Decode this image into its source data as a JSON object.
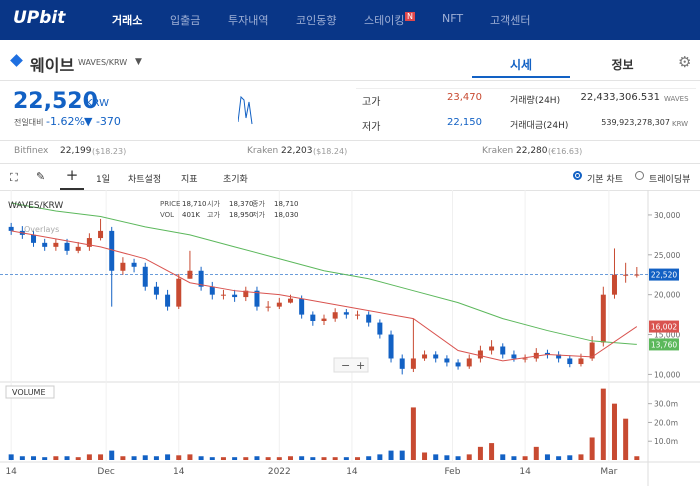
{
  "header": {
    "logo": "UPbit",
    "nav": [
      "거래소",
      "입출금",
      "투자내역",
      "코인동향",
      "스테이킹",
      "NFT",
      "고객센터"
    ],
    "badge": "N"
  },
  "coin": {
    "name": "웨이브",
    "pair": "WAVES/KRW",
    "tabs": [
      "시세",
      "정보"
    ]
  },
  "ticker": {
    "price": "22,520",
    "unit": "KRW",
    "change_label": "전일대비",
    "change_pct": "-1.62%",
    "change_abs": "▼ -370",
    "high_label": "고가",
    "high": "23,470",
    "low_label": "저가",
    "low": "22,150",
    "vol_label": "거래량(24H)",
    "vol": "22,433,306.531",
    "vol_unit": "WAVES",
    "amt_label": "거래대금(24H)",
    "amt": "539,923,278,307",
    "amt_unit": "KRW"
  },
  "exchanges": [
    {
      "name": "Bitfinex",
      "price": "22,199",
      "usd": "($18.23)"
    },
    {
      "name": "Kraken",
      "price": "22,203",
      "usd": "($18.24)"
    },
    {
      "name": "Kraken",
      "price": "22,280",
      "usd": "(€16.63)"
    }
  ],
  "toolbar": {
    "interval": "1일",
    "settings": "차트설정",
    "indicator": "지표",
    "reset": "초기화",
    "basic": "기본 차트",
    "tv": "트레이딩뷰"
  },
  "chart_data": {
    "type": "candlestick",
    "title": "WAVES/KRW",
    "overlay_label": "Overlays",
    "volume_label": "VOLUME",
    "info": [
      [
        "PRICE",
        "18,710"
      ],
      [
        "시가",
        "18,370"
      ],
      [
        "종가",
        "18,710"
      ],
      [
        "VOL",
        "401K"
      ],
      [
        "고가",
        "18,950"
      ],
      [
        "저가",
        "18,030"
      ]
    ],
    "up_color": "#c84a31",
    "down_color": "#1261c4",
    "x": [
      0,
      2,
      4,
      6,
      8,
      10,
      12,
      14,
      16,
      18,
      20,
      22,
      24,
      26,
      28,
      30,
      32,
      34,
      36,
      38,
      40,
      42,
      44,
      46,
      48,
      50,
      52,
      54,
      56,
      58,
      60,
      62,
      64,
      66,
      68,
      70,
      72,
      74,
      76,
      78,
      80,
      82,
      84,
      86,
      88,
      90,
      92,
      94,
      96,
      98,
      100,
      102,
      104,
      106,
      108,
      110,
      112
    ],
    "open": [
      28500,
      28000,
      27500,
      26500,
      26000,
      26500,
      25500,
      26000,
      27100,
      28000,
      23000,
      24000,
      23500,
      21000,
      20000,
      18500,
      22000,
      23000,
      21000,
      20000,
      20000,
      19700,
      20500,
      18500,
      18500,
      19000,
      19500,
      17500,
      16700,
      17000,
      17800,
      17500,
      17500,
      16500,
      15000,
      12000,
      10700,
      12000,
      12500,
      12000,
      11500,
      11000,
      12000,
      13000,
      13500,
      12500,
      12000,
      12000,
      12700,
      12500,
      12000,
      11300,
      12000,
      14000,
      20000,
      22500,
      22500
    ],
    "high": [
      29000,
      28600,
      28000,
      27000,
      27000,
      27000,
      26600,
      27700,
      29500,
      28500,
      24700,
      24500,
      24000,
      21600,
      20600,
      22600,
      25500,
      23500,
      21600,
      20600,
      20600,
      21000,
      21000,
      19200,
      19600,
      20000,
      19900,
      17900,
      17500,
      18300,
      18200,
      18000,
      17900,
      16900,
      15500,
      12500,
      17000,
      13000,
      12900,
      12400,
      11900,
      12500,
      13600,
      14300,
      13900,
      13000,
      12500,
      13300,
      13100,
      12900,
      12400,
      12600,
      14800,
      21000,
      25800,
      24000,
      23470
    ],
    "low": [
      27500,
      27000,
      26000,
      25500,
      25500,
      25000,
      25200,
      25500,
      26800,
      18500,
      22500,
      22800,
      20500,
      19400,
      18000,
      18200,
      22000,
      20500,
      19400,
      19400,
      19100,
      19200,
      18000,
      17900,
      18200,
      18900,
      17000,
      16100,
      16200,
      16600,
      17000,
      16900,
      16000,
      14500,
      11500,
      10000,
      10300,
      11700,
      11500,
      11000,
      10600,
      10700,
      11500,
      12500,
      12000,
      11600,
      11500,
      11600,
      12000,
      11500,
      10900,
      11000,
      11700,
      13500,
      19500,
      21500,
      22150
    ],
    "close": [
      28000,
      27500,
      26500,
      26000,
      26500,
      25500,
      26000,
      27100,
      28000,
      23000,
      24000,
      23500,
      21000,
      20000,
      18500,
      22000,
      23000,
      21000,
      20000,
      20000,
      19700,
      20500,
      18500,
      18500,
      19000,
      19500,
      17500,
      16700,
      17000,
      17800,
      17500,
      17500,
      16500,
      15000,
      12000,
      10700,
      12000,
      12500,
      12000,
      11500,
      11000,
      12000,
      13000,
      13500,
      12500,
      12000,
      12000,
      12700,
      12500,
      12000,
      11300,
      12000,
      14000,
      20000,
      22500,
      22500,
      22520
    ],
    "volume": [
      3,
      2,
      2,
      1.5,
      2,
      2,
      1.5,
      3,
      3,
      5,
      2,
      2,
      2.5,
      2,
      3,
      2.5,
      3,
      2,
      1.5,
      1.5,
      1.5,
      1.5,
      2,
      1.5,
      1.5,
      2,
      2,
      1.5,
      1.5,
      1.5,
      1.5,
      1.5,
      2,
      3,
      5,
      5,
      28,
      4,
      3,
      2.5,
      2,
      3,
      7,
      9,
      3,
      2,
      2,
      7,
      3,
      2,
      2.5,
      3,
      12,
      38,
      30,
      22,
      2
    ],
    "ma": [
      {
        "color": "#5cb85c",
        "x": [
          0,
          8,
          16,
          24,
          32,
          40,
          48,
          56,
          64,
          72,
          80,
          88,
          96,
          104,
          112
        ],
        "values": [
          31500,
          30500,
          29800,
          28500,
          27500,
          26000,
          24500,
          23000,
          22000,
          20500,
          19000,
          17000,
          15500,
          14200,
          13760
        ],
        "last": {
          "value": 13760,
          "label": "13,760"
        }
      },
      {
        "color": "#d9534f",
        "x": [
          0,
          8,
          16,
          24,
          32,
          40,
          48,
          56,
          64,
          72,
          80,
          88,
          96,
          104,
          112
        ],
        "values": [
          28000,
          27000,
          26000,
          24500,
          21500,
          20500,
          20000,
          19000,
          18000,
          17000,
          13000,
          11700,
          12500,
          12200,
          16002
        ],
        "last": {
          "value": 16002,
          "label": "16,002"
        }
      }
    ],
    "last_price": {
      "value": 22520,
      "label": "22,520"
    },
    "xlim": [
      -2,
      114
    ],
    "ylim": [
      9300,
      32500
    ],
    "vlim": [
      0,
      41
    ],
    "xticks": [
      {
        "value": 0,
        "label": "14"
      },
      {
        "value": 17,
        "label": "Dec"
      },
      {
        "value": 30,
        "label": "14"
      },
      {
        "value": 48,
        "label": "2022"
      },
      {
        "value": 61,
        "label": "14"
      },
      {
        "value": 79,
        "label": "Feb"
      },
      {
        "value": 92,
        "label": "14"
      },
      {
        "value": 107,
        "label": "Mar"
      }
    ],
    "yticks": [
      {
        "value": 10000,
        "label": "10,000"
      },
      {
        "value": 15000,
        "label": "15,000"
      },
      {
        "value": 20000,
        "label": "20,000"
      },
      {
        "value": 25000,
        "label": "25,000"
      },
      {
        "value": 30000,
        "label": "30,000"
      }
    ],
    "vticks": [
      {
        "value": 10,
        "label": "10.0m"
      },
      {
        "value": 20,
        "label": "20.0m"
      },
      {
        "value": 30,
        "label": "30.0m"
      }
    ]
  }
}
